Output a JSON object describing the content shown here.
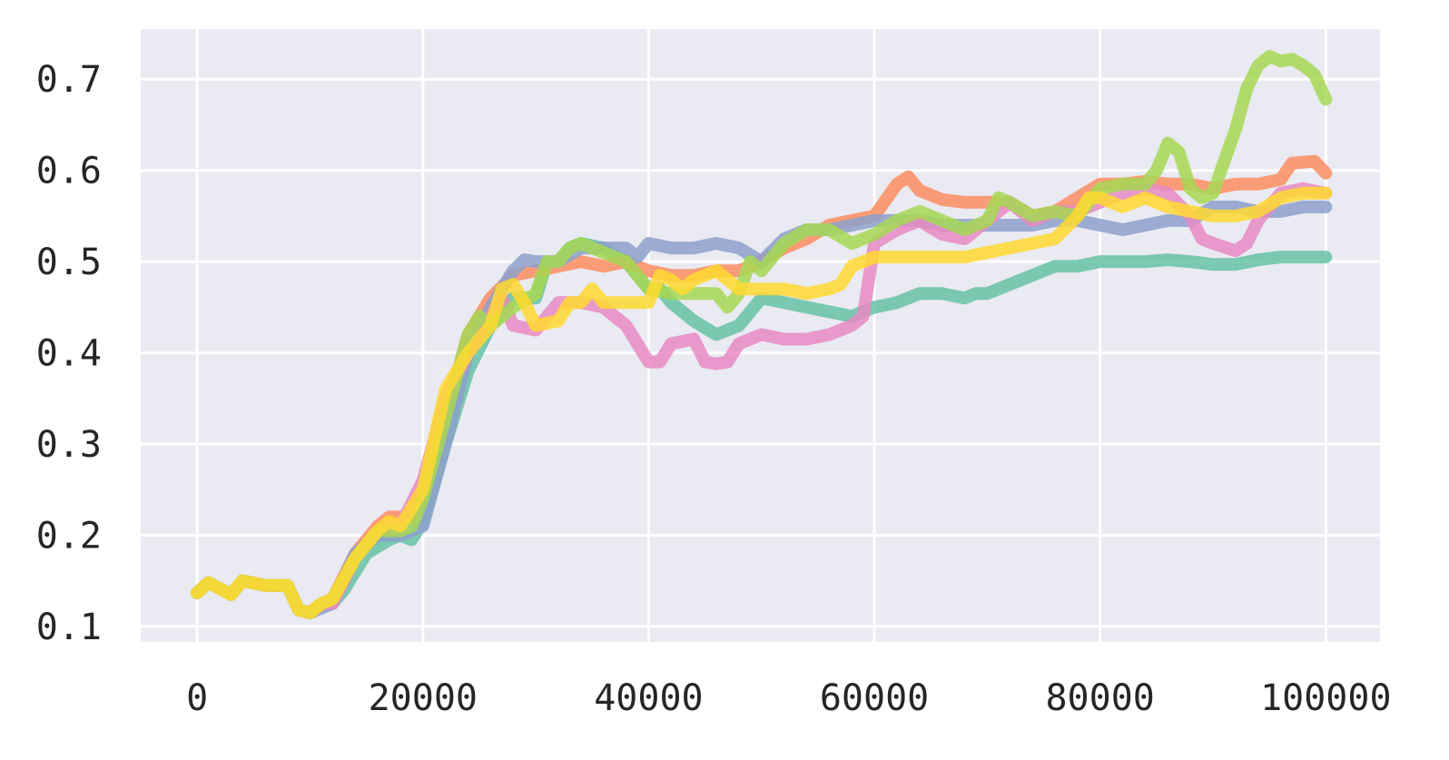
{
  "chart_data": {
    "type": "line",
    "title": "",
    "xlabel": "",
    "ylabel": "",
    "xlim": [
      -5000,
      104800
    ],
    "ylim": [
      0.083,
      0.755
    ],
    "grid": true,
    "legend": "none",
    "background_color": "#eaeaf2",
    "x_ticks": [
      0,
      20000,
      40000,
      60000,
      80000,
      100000
    ],
    "x_tick_labels": [
      "0",
      "20000",
      "40000",
      "60000",
      "80000",
      "100000"
    ],
    "y_ticks": [
      0.1,
      0.2,
      0.3,
      0.4,
      0.5,
      0.6,
      0.7
    ],
    "y_tick_labels": [
      "0.1",
      "0.2",
      "0.3",
      "0.4",
      "0.5",
      "0.6",
      "0.7"
    ],
    "series": [
      {
        "color": "#66c2a5",
        "x": [
          0,
          1000,
          3000,
          4000,
          6000,
          8000,
          9000,
          10000,
          11000,
          12000,
          13000,
          15000,
          17000,
          18000,
          19000,
          20000,
          22000,
          24000,
          26000,
          28000,
          30000,
          31000,
          32000,
          33000,
          34000,
          36000,
          38000,
          40000,
          41000,
          42000,
          44000,
          46000,
          48000,
          50000,
          52000,
          54000,
          56000,
          58000,
          60000,
          62000,
          64000,
          66000,
          68000,
          69000,
          70000,
          72000,
          74000,
          76000,
          78000,
          80000,
          82000,
          84000,
          86000,
          88000,
          90000,
          92000,
          94000,
          96000,
          98000,
          100000
        ],
        "y": [
          0.137,
          0.148,
          0.135,
          0.15,
          0.145,
          0.145,
          0.118,
          0.115,
          0.125,
          0.125,
          0.14,
          0.18,
          0.195,
          0.2,
          0.195,
          0.215,
          0.3,
          0.38,
          0.43,
          0.46,
          0.46,
          0.5,
          0.5,
          0.515,
          0.52,
          0.515,
          0.5,
          0.47,
          0.47,
          0.455,
          0.435,
          0.42,
          0.43,
          0.46,
          0.455,
          0.45,
          0.445,
          0.44,
          0.45,
          0.455,
          0.465,
          0.465,
          0.46,
          0.465,
          0.465,
          0.475,
          0.485,
          0.495,
          0.495,
          0.5,
          0.5,
          0.5,
          0.502,
          0.5,
          0.497,
          0.497,
          0.502,
          0.505,
          0.505,
          0.505
        ]
      },
      {
        "color": "#fc8d62",
        "x": [
          0,
          1000,
          3000,
          4000,
          6000,
          8000,
          9000,
          10000,
          11000,
          12000,
          14000,
          16000,
          17000,
          18000,
          19000,
          20000,
          22000,
          24000,
          26000,
          28000,
          30000,
          32000,
          34000,
          36000,
          38000,
          40000,
          42000,
          44000,
          46000,
          48000,
          50000,
          52000,
          54000,
          56000,
          58000,
          60000,
          62000,
          63000,
          64000,
          66000,
          68000,
          70000,
          72000,
          74000,
          76000,
          78000,
          80000,
          82000,
          84000,
          86000,
          88000,
          90000,
          92000,
          94000,
          96000,
          97000,
          99000,
          100000
        ],
        "y": [
          0.137,
          0.148,
          0.135,
          0.15,
          0.145,
          0.145,
          0.118,
          0.115,
          0.125,
          0.13,
          0.18,
          0.21,
          0.22,
          0.22,
          0.22,
          0.25,
          0.33,
          0.42,
          0.46,
          0.485,
          0.49,
          0.495,
          0.5,
          0.495,
          0.5,
          0.49,
          0.485,
          0.485,
          0.49,
          0.49,
          0.5,
          0.515,
          0.525,
          0.54,
          0.545,
          0.55,
          0.585,
          0.593,
          0.578,
          0.568,
          0.565,
          0.565,
          0.565,
          0.55,
          0.555,
          0.57,
          0.585,
          0.585,
          0.588,
          0.585,
          0.585,
          0.58,
          0.585,
          0.585,
          0.59,
          0.608,
          0.61,
          0.597
        ]
      },
      {
        "color": "#8da0cb",
        "x": [
          0,
          1000,
          3000,
          4000,
          6000,
          8000,
          9000,
          10000,
          11000,
          12000,
          14000,
          16000,
          18000,
          20000,
          22000,
          24000,
          26000,
          28000,
          29000,
          30000,
          32000,
          34000,
          36000,
          38000,
          39000,
          40000,
          42000,
          44000,
          46000,
          48000,
          50000,
          52000,
          54000,
          56000,
          58000,
          60000,
          62000,
          64000,
          66000,
          68000,
          70000,
          72000,
          74000,
          76000,
          78000,
          80000,
          82000,
          84000,
          86000,
          88000,
          90000,
          92000,
          94000,
          96000,
          98000,
          100000
        ],
        "y": [
          0.137,
          0.148,
          0.135,
          0.15,
          0.145,
          0.145,
          0.118,
          0.115,
          0.12,
          0.125,
          0.18,
          0.2,
          0.2,
          0.21,
          0.3,
          0.4,
          0.45,
          0.49,
          0.502,
          0.5,
          0.5,
          0.515,
          0.515,
          0.515,
          0.505,
          0.52,
          0.515,
          0.515,
          0.52,
          0.515,
          0.5,
          0.525,
          0.535,
          0.535,
          0.54,
          0.545,
          0.545,
          0.545,
          0.54,
          0.54,
          0.54,
          0.54,
          0.54,
          0.545,
          0.545,
          0.54,
          0.535,
          0.54,
          0.545,
          0.545,
          0.56,
          0.56,
          0.555,
          0.555,
          0.56,
          0.56
        ]
      },
      {
        "color": "#e78ac3",
        "x": [
          0,
          1000,
          3000,
          4000,
          6000,
          8000,
          9000,
          10000,
          11000,
          12000,
          14000,
          16000,
          18000,
          20000,
          22000,
          24000,
          26000,
          27000,
          28000,
          30000,
          32000,
          34000,
          36000,
          38000,
          40000,
          41000,
          42000,
          44000,
          45000,
          46000,
          47000,
          48000,
          50000,
          52000,
          54000,
          56000,
          58000,
          59000,
          60000,
          62000,
          64000,
          66000,
          68000,
          70000,
          72000,
          74000,
          76000,
          78000,
          80000,
          82000,
          84000,
          86000,
          88000,
          89000,
          90000,
          92000,
          93000,
          94000,
          96000,
          98000,
          100000
        ],
        "y": [
          0.137,
          0.148,
          0.135,
          0.15,
          0.145,
          0.145,
          0.118,
          0.115,
          0.125,
          0.125,
          0.175,
          0.205,
          0.21,
          0.26,
          0.35,
          0.4,
          0.44,
          0.46,
          0.43,
          0.425,
          0.455,
          0.455,
          0.45,
          0.43,
          0.39,
          0.39,
          0.41,
          0.415,
          0.39,
          0.388,
          0.39,
          0.41,
          0.42,
          0.415,
          0.415,
          0.42,
          0.43,
          0.44,
          0.52,
          0.535,
          0.545,
          0.53,
          0.525,
          0.545,
          0.565,
          0.545,
          0.555,
          0.555,
          0.565,
          0.575,
          0.58,
          0.575,
          0.55,
          0.525,
          0.52,
          0.512,
          0.52,
          0.545,
          0.575,
          0.58,
          0.575
        ]
      },
      {
        "color": "#a6d854",
        "x": [
          0,
          1000,
          3000,
          4000,
          6000,
          8000,
          9000,
          10000,
          11000,
          12000,
          14000,
          16000,
          18000,
          19000,
          20000,
          22000,
          24000,
          25000,
          26000,
          28000,
          30000,
          31000,
          32000,
          33000,
          34000,
          36000,
          38000,
          40000,
          42000,
          44000,
          46000,
          47000,
          48000,
          49000,
          50000,
          52000,
          54000,
          56000,
          58000,
          60000,
          62000,
          64000,
          66000,
          68000,
          70000,
          71000,
          72000,
          74000,
          76000,
          78000,
          80000,
          82000,
          84000,
          85000,
          86000,
          87000,
          88000,
          89000,
          90000,
          91000,
          92000,
          93000,
          94000,
          95000,
          96000,
          97000,
          98000,
          99000,
          100000
        ],
        "y": [
          0.137,
          0.148,
          0.135,
          0.15,
          0.145,
          0.145,
          0.118,
          0.115,
          0.125,
          0.13,
          0.175,
          0.205,
          0.205,
          0.21,
          0.24,
          0.33,
          0.42,
          0.44,
          0.43,
          0.45,
          0.465,
          0.5,
          0.5,
          0.515,
          0.52,
          0.51,
          0.5,
          0.47,
          0.465,
          0.465,
          0.465,
          0.45,
          0.465,
          0.5,
          0.49,
          0.52,
          0.535,
          0.535,
          0.52,
          0.53,
          0.545,
          0.555,
          0.545,
          0.535,
          0.545,
          0.57,
          0.565,
          0.55,
          0.555,
          0.55,
          0.58,
          0.585,
          0.585,
          0.6,
          0.63,
          0.62,
          0.58,
          0.57,
          0.575,
          0.61,
          0.645,
          0.69,
          0.715,
          0.725,
          0.72,
          0.722,
          0.715,
          0.705,
          0.678
        ]
      },
      {
        "color": "#ffd92f",
        "x": [
          0,
          1000,
          3000,
          4000,
          6000,
          8000,
          9000,
          10000,
          11000,
          12000,
          14000,
          16000,
          17000,
          18000,
          20000,
          22000,
          24000,
          26000,
          27000,
          28000,
          29000,
          30000,
          32000,
          33000,
          34000,
          35000,
          36000,
          38000,
          40000,
          41000,
          42000,
          43000,
          44000,
          46000,
          47000,
          48000,
          50000,
          52000,
          54000,
          56000,
          57000,
          58000,
          60000,
          62000,
          64000,
          66000,
          68000,
          70000,
          72000,
          74000,
          76000,
          78000,
          79000,
          80000,
          82000,
          84000,
          86000,
          88000,
          90000,
          92000,
          94000,
          96000,
          98000,
          100000
        ],
        "y": [
          0.137,
          0.148,
          0.135,
          0.15,
          0.145,
          0.145,
          0.118,
          0.115,
          0.125,
          0.13,
          0.175,
          0.205,
          0.215,
          0.21,
          0.25,
          0.36,
          0.4,
          0.43,
          0.47,
          0.475,
          0.455,
          0.43,
          0.435,
          0.455,
          0.455,
          0.47,
          0.455,
          0.455,
          0.455,
          0.485,
          0.48,
          0.47,
          0.48,
          0.49,
          0.48,
          0.47,
          0.47,
          0.47,
          0.465,
          0.47,
          0.475,
          0.495,
          0.505,
          0.505,
          0.505,
          0.505,
          0.505,
          0.51,
          0.515,
          0.52,
          0.525,
          0.55,
          0.57,
          0.57,
          0.56,
          0.57,
          0.56,
          0.555,
          0.55,
          0.55,
          0.555,
          0.57,
          0.575,
          0.575
        ]
      }
    ]
  }
}
